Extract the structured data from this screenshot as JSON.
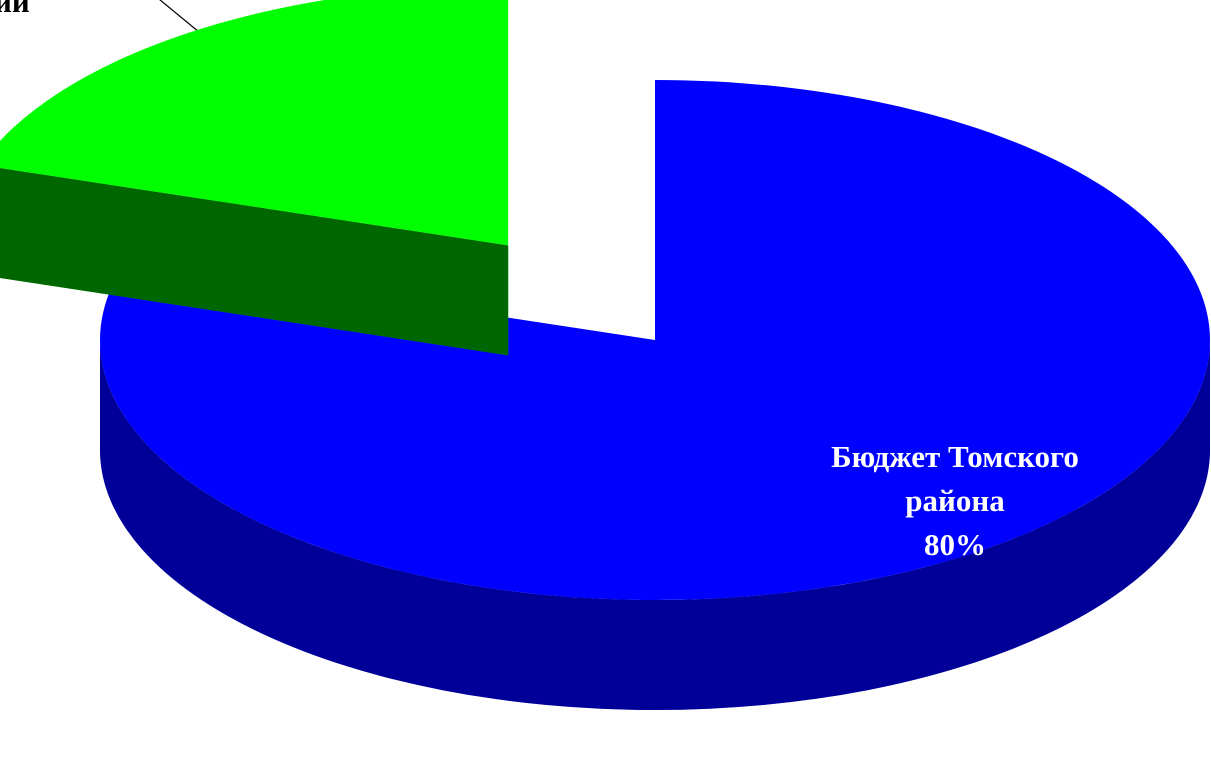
{
  "chart_data": {
    "type": "pie",
    "categories": [
      "ии",
      "Бюджет Томского района"
    ],
    "values": [
      20,
      80
    ],
    "value_labels": [
      null,
      "80%"
    ],
    "colors": [
      "#00ff00",
      "#0000ff"
    ]
  }
}
